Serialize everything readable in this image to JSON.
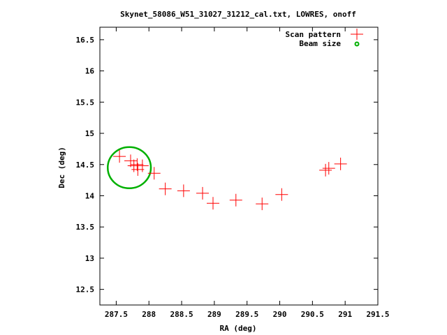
{
  "chart_data": {
    "type": "scatter",
    "title": "Skynet_58086_W51_31027_31212_cal.txt, LOWRES, onoff",
    "xlabel": "RA (deg)",
    "ylabel": "Dec (deg)",
    "xlim": [
      287.25,
      291.5
    ],
    "ylim": [
      12.25,
      16.7
    ],
    "x_ticks": [
      287.5,
      288,
      288.5,
      289,
      289.5,
      290,
      290.5,
      291,
      291.5
    ],
    "y_ticks": [
      12.5,
      13,
      13.5,
      14,
      14.5,
      15,
      15.5,
      16,
      16.5
    ],
    "x_tick_labels": [
      "287.5",
      "288",
      "288.5",
      "289",
      "289.5",
      "290",
      "290.5",
      "291",
      "291.5"
    ],
    "y_tick_labels": [
      "12.5",
      "13",
      "13.5",
      "14",
      "14.5",
      "15",
      "15.5",
      "16",
      "16.5"
    ],
    "legend_position": "top-right",
    "series": [
      {
        "name": "Scan pattern",
        "color": "#ff0000",
        "marker": "plus",
        "points": [
          {
            "x": 287.55,
            "y": 14.63
          },
          {
            "x": 287.72,
            "y": 14.56
          },
          {
            "x": 287.77,
            "y": 14.48
          },
          {
            "x": 287.82,
            "y": 14.5
          },
          {
            "x": 287.83,
            "y": 14.42
          },
          {
            "x": 287.9,
            "y": 14.48
          },
          {
            "x": 288.08,
            "y": 14.36
          },
          {
            "x": 288.25,
            "y": 14.11
          },
          {
            "x": 288.53,
            "y": 14.08
          },
          {
            "x": 288.82,
            "y": 14.04
          },
          {
            "x": 288.98,
            "y": 13.88
          },
          {
            "x": 289.33,
            "y": 13.93
          },
          {
            "x": 289.73,
            "y": 13.87
          },
          {
            "x": 290.03,
            "y": 14.02
          },
          {
            "x": 290.7,
            "y": 14.41
          },
          {
            "x": 290.75,
            "y": 14.44
          },
          {
            "x": 290.93,
            "y": 14.51
          }
        ]
      },
      {
        "name": "Beam size",
        "color": "#00b000",
        "marker": "circle",
        "center": {
          "x": 287.7,
          "y": 14.45
        },
        "radius_deg": 0.33
      }
    ]
  }
}
